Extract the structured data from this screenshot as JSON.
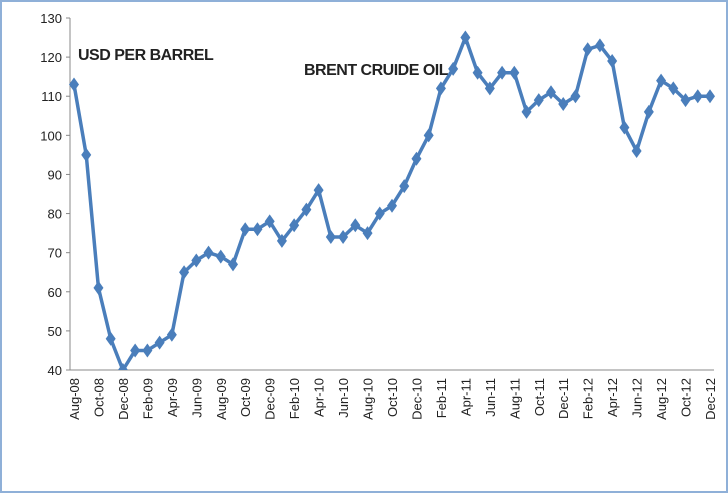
{
  "chart_data": {
    "type": "line",
    "annotations": [
      "USD PER BARREL",
      "BRENT CRUIDE OIL"
    ],
    "categories": [
      "Aug-08",
      null,
      "Oct-08",
      null,
      "Dec-08",
      null,
      "Feb-09",
      null,
      "Apr-09",
      null,
      "Jun-09",
      null,
      "Aug-09",
      null,
      "Oct-09",
      null,
      "Dec-09",
      null,
      "Feb-10",
      null,
      "Apr-10",
      null,
      "Jun-10",
      null,
      "Aug-10",
      null,
      "Oct-10",
      null,
      "Dec-10",
      null,
      "Feb-11",
      null,
      "Apr-11",
      null,
      "Jun-11",
      null,
      "Aug-11",
      null,
      "Oct-11",
      null,
      "Dec-11",
      null,
      "Feb-12",
      null,
      "Apr-12",
      null,
      "Jun-12",
      null,
      "Aug-12",
      null,
      "Oct-12",
      null,
      "Dec-12"
    ],
    "values": [
      113,
      95,
      61,
      48,
      40,
      45,
      45,
      47,
      49,
      65,
      68,
      70,
      69,
      67,
      76,
      76,
      78,
      73,
      77,
      81,
      86,
      74,
      74,
      77,
      75,
      80,
      82,
      87,
      94,
      100,
      112,
      117,
      125,
      116,
      112,
      116,
      116,
      106,
      109,
      111,
      108,
      110,
      122,
      123,
      119,
      102,
      96,
      106,
      114,
      112,
      109,
      110,
      110
    ],
    "color": "#4a7ebb",
    "ylim": [
      40,
      130
    ],
    "yticks": [
      40,
      50,
      60,
      70,
      80,
      90,
      100,
      110,
      120,
      130
    ],
    "grid": false
  }
}
